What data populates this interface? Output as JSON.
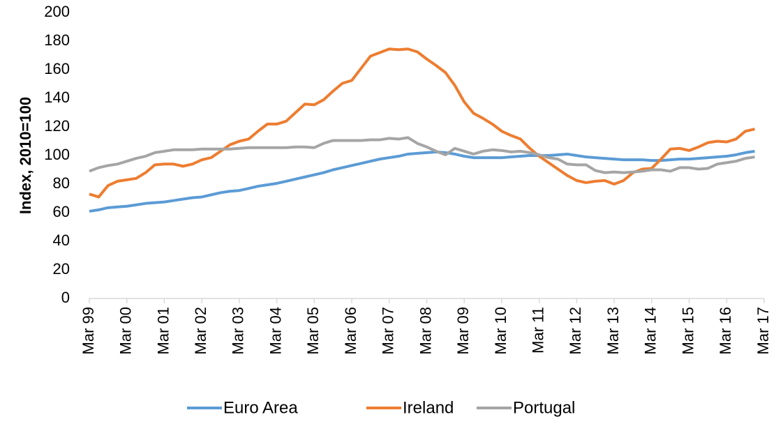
{
  "chart_data": {
    "type": "line",
    "y_label": "Index, 2010=100",
    "categories": [
      "Mar 99",
      null,
      null,
      null,
      "Mar 00",
      null,
      null,
      null,
      "Mar 01",
      null,
      null,
      null,
      "Mar 02",
      null,
      null,
      null,
      "Mar 03",
      null,
      null,
      null,
      "Mar 04",
      null,
      null,
      null,
      "Mar 05",
      null,
      null,
      null,
      "Mar 06",
      null,
      null,
      null,
      "Mar 07",
      null,
      null,
      null,
      "Mar 08",
      null,
      null,
      null,
      "Mar 09",
      null,
      null,
      null,
      "Mar 10",
      null,
      null,
      null,
      "Mar 11",
      null,
      null,
      null,
      "Mar 12",
      null,
      null,
      null,
      "Mar 13",
      null,
      null,
      null,
      "Mar 14",
      null,
      null,
      null,
      "Mar 15",
      null,
      null,
      null,
      "Mar 16",
      null,
      null,
      null,
      "Mar 17"
    ],
    "series": [
      {
        "name": "Euro Area",
        "color": "#5b9bd5",
        "values": [
          61,
          62,
          63.5,
          64,
          64.5,
          65.5,
          66.5,
          67,
          67.5,
          68.5,
          69.5,
          70.5,
          71,
          72.5,
          74,
          75,
          75.5,
          77,
          78.5,
          79.5,
          80.5,
          82,
          83.5,
          85,
          86.5,
          88,
          90,
          91.5,
          93,
          94.5,
          96,
          97.5,
          98.5,
          99.5,
          101,
          101.5,
          102,
          102.5,
          102,
          101,
          99.5,
          98.5,
          98.5,
          98.5,
          98.5,
          99,
          99.5,
          100,
          100,
          100,
          100.5,
          101,
          100,
          99,
          98.5,
          98,
          97.5,
          97,
          97,
          97,
          96.5,
          96.5,
          97,
          97.5,
          97.5,
          98,
          98.5,
          99,
          99.5,
          100.5,
          102,
          103,
          null
        ]
      },
      {
        "name": "Ireland",
        "color": "#ed7d31",
        "values": [
          73,
          71,
          79,
          82,
          83,
          84,
          88,
          93.5,
          94,
          94,
          92.5,
          94,
          97,
          98.5,
          103,
          107.5,
          110,
          111.5,
          117,
          122,
          122,
          124,
          130,
          136,
          135.5,
          139,
          145,
          150.5,
          152.5,
          161,
          169.5,
          172,
          174.5,
          174,
          174.5,
          172.5,
          167.5,
          163,
          158,
          149,
          137.5,
          129.5,
          126,
          122,
          117,
          114,
          111.5,
          105,
          99.5,
          95,
          90.5,
          86,
          82.5,
          81,
          82,
          82.5,
          80,
          82.5,
          88,
          90.5,
          91,
          97.5,
          104.5,
          105,
          103.5,
          106,
          109,
          110,
          109.5,
          111.5,
          117,
          118.5,
          null
        ]
      },
      {
        "name": "Portugal",
        "color": "#a5a5a5",
        "values": [
          89,
          91.5,
          93,
          94,
          96,
          98,
          99.5,
          102,
          103,
          104,
          104,
          104,
          104.5,
          104.5,
          104.5,
          104.5,
          105,
          105.5,
          105.5,
          105.5,
          105.5,
          105.5,
          106,
          106,
          105.5,
          108.5,
          110.5,
          110.5,
          110.5,
          110.5,
          111,
          111,
          112,
          111.5,
          112.5,
          108.5,
          106,
          103,
          100.5,
          105,
          103,
          101,
          103,
          104,
          103.5,
          102.5,
          103,
          102,
          100.5,
          98.5,
          97.5,
          94,
          93.5,
          93.5,
          89.5,
          88,
          88.5,
          88,
          88.5,
          89,
          90,
          90,
          89,
          91.5,
          91.5,
          90.5,
          91,
          94,
          95,
          96,
          98,
          99,
          null
        ]
      }
    ],
    "ylim": [
      0,
      200
    ],
    "yticks": [
      0,
      20,
      40,
      60,
      80,
      100,
      120,
      140,
      160,
      180,
      200
    ],
    "grid": false
  }
}
